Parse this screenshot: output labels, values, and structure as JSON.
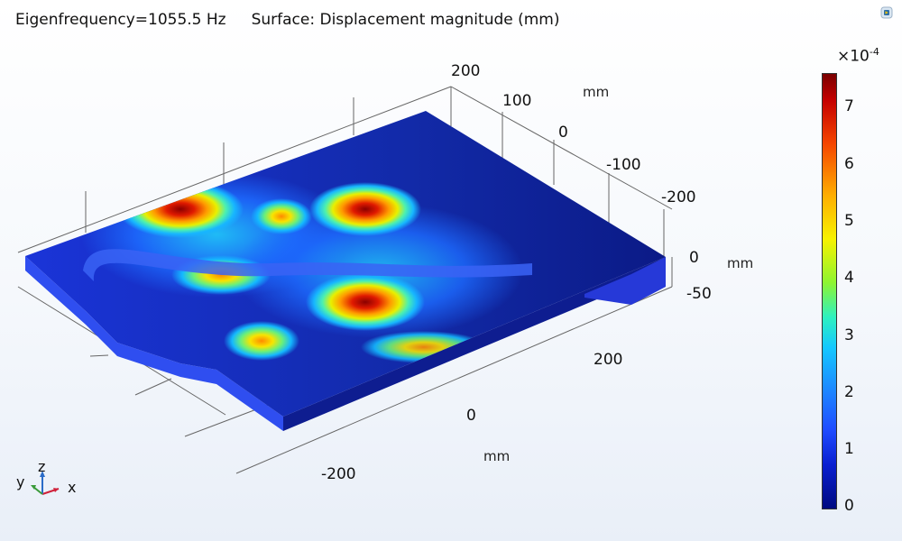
{
  "plot": {
    "eigenfrequency_label": "Eigenfrequency=1055.5 Hz",
    "surface_label": "Surface: Displacement magnitude (mm)"
  },
  "axes": {
    "top_ticks": [
      "200",
      "100",
      "0",
      "-100",
      "-200"
    ],
    "top_unit": "mm",
    "right_ticks": [
      "0",
      "-50"
    ],
    "right_unit": "mm",
    "front_ticks": [
      "200",
      "0",
      "-200"
    ],
    "front_unit": "mm"
  },
  "colorbar": {
    "multiplier_base": "×10",
    "multiplier_exponent": "-4",
    "ticks": [
      "7",
      "6",
      "5",
      "4",
      "3",
      "2",
      "1",
      "0"
    ],
    "colormap": [
      "#000a80",
      "#1f4bff",
      "#15c8ff",
      "#8ef530",
      "#f7f200",
      "#ffae00",
      "#f54500",
      "#7a0000"
    ]
  },
  "triad": {
    "x": "x",
    "y": "y",
    "z": "z"
  },
  "colors": {
    "plate_base": "#1428b4",
    "plate_side": "#2a46e0",
    "hot": "#c40000",
    "axis_line": "#555555"
  }
}
